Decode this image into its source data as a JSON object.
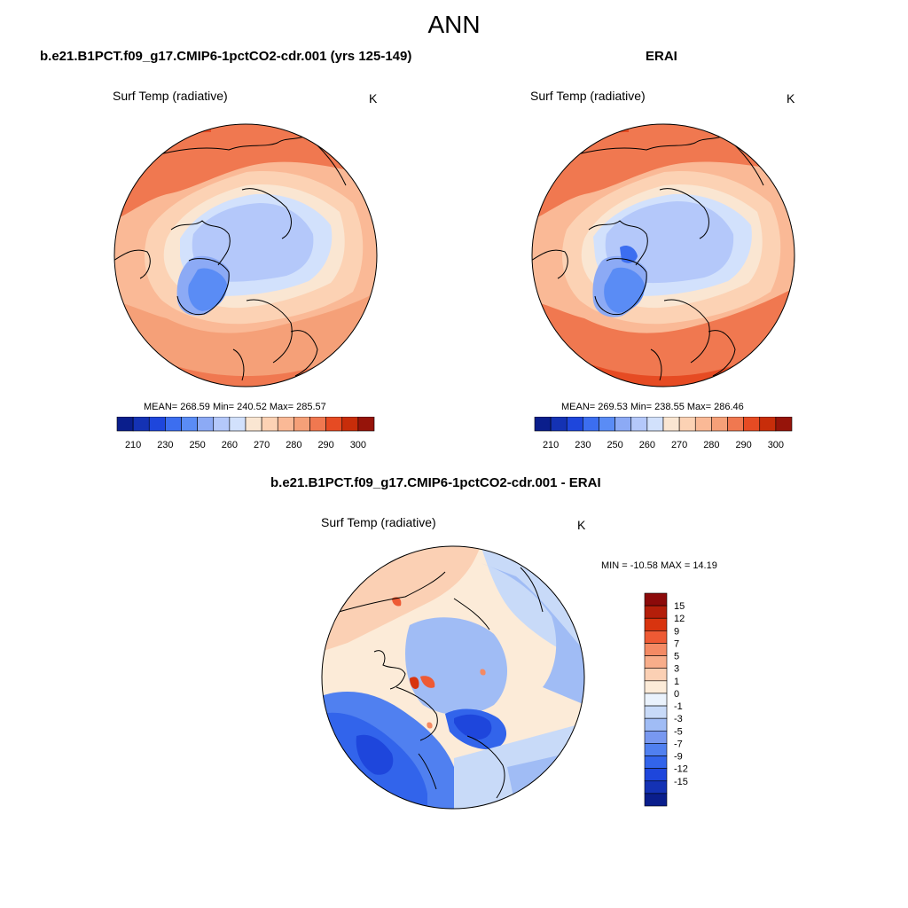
{
  "page": {
    "season": "ANN"
  },
  "panels": [
    {
      "title": "b.e21.B1PCT.f09_g17.CMIP6-1pctCO2-cdr.001 (yrs 125-149)",
      "variable": "Surf Temp (radiative)",
      "units": "K",
      "stats": "MEAN= 268.59  Min= 240.52  Max= 285.57"
    },
    {
      "title": "ERAI",
      "variable": "Surf Temp (radiative)",
      "units": "K",
      "stats": "MEAN= 269.53  Min= 238.55  Max= 286.46"
    },
    {
      "title": "b.e21.B1PCT.f09_g17.CMIP6-1pctCO2-cdr.001 - ERAI",
      "variable": "Surf Temp (radiative)",
      "units": "K",
      "stats": "MIN = -10.58 MAX =  14.19"
    }
  ],
  "colorbar_abs": {
    "colors": [
      "#0a1e8c",
      "#1432b4",
      "#1e46dc",
      "#3c6ef0",
      "#5a8cf5",
      "#8caaf5",
      "#b4c8fa",
      "#d2e1fc",
      "#fae6d2",
      "#fcd2b4",
      "#fab996",
      "#f5a078",
      "#f07850",
      "#e64b23",
      "#c82d0a",
      "#96140a"
    ],
    "tick_labels": [
      "210",
      "230",
      "250",
      "260",
      "270",
      "280",
      "290",
      "300"
    ]
  },
  "colorbar_diff": {
    "colors": [
      "#0a1e8c",
      "#1432b4",
      "#1e46dc",
      "#3264eb",
      "#5080f0",
      "#7898f0",
      "#a0bcf5",
      "#c8daf8",
      "#eaf2fc",
      "#fcebd8",
      "#fbd0b4",
      "#f8ad8a",
      "#f48a64",
      "#ee5a34",
      "#d8340f",
      "#b41e0a",
      "#8c0a0a"
    ],
    "tick_labels": [
      "15",
      "12",
      "9",
      "7",
      "5",
      "3",
      "1",
      "0",
      "-1",
      "-3",
      "-5",
      "-7",
      "-9",
      "-12",
      "-15"
    ]
  }
}
